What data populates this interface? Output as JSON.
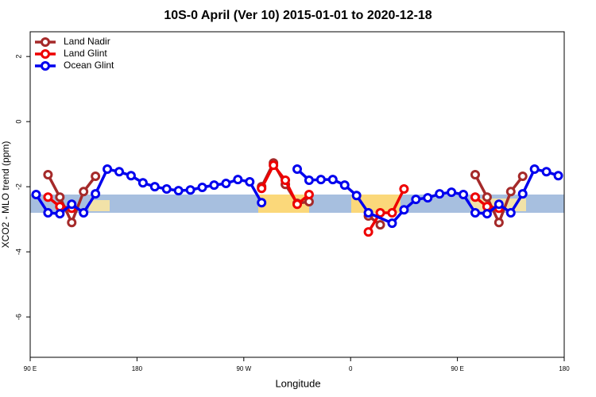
{
  "chart_data": {
    "type": "line",
    "title": "10S-0 April (Ver 10)   2015-01-01 to 2020-12-18",
    "xlabel": "Longitude",
    "ylabel": "XCO2 - MLO trend (ppm)",
    "xlim": [
      90,
      540
    ],
    "xticks": [
      {
        "value": 90,
        "label": "90 E"
      },
      180,
      {
        "value": 270,
        "label": "90 W"
      },
      {
        "value": 360,
        "label": "0"
      },
      {
        "value": 450,
        "label": "90 E"
      },
      {
        "value": 540,
        "label": "180"
      }
    ],
    "ylim": [
      -7.24,
      2.76
    ],
    "yticks": [
      2,
      0,
      -2,
      -4,
      -6
    ],
    "legend": "top-left",
    "series": [
      {
        "name": "Land Nadir",
        "color": "#a52a2a",
        "x": [
          105,
          115,
          125,
          135,
          145,
          205,
          285,
          295,
          305,
          315,
          325,
          350,
          375,
          385,
          420,
          465,
          475,
          485,
          495,
          505
        ],
        "values": [
          -1.63,
          -2.32,
          -3.1,
          -2.15,
          -1.68,
          null,
          -2.0,
          -1.27,
          -1.93,
          -2.51,
          -2.46,
          null,
          -2.9,
          -3.17,
          null,
          -1.63,
          -2.32,
          -3.1,
          -2.15,
          -1.68
        ]
      },
      {
        "name": "Land Glint",
        "color": "#ee0000",
        "x": [
          105,
          115,
          125,
          205,
          285,
          295,
          305,
          315,
          325,
          350,
          375,
          385,
          395,
          405,
          435,
          465,
          475,
          485
        ],
        "values": [
          -2.32,
          -2.61,
          -2.66,
          null,
          -2.05,
          -1.34,
          -1.8,
          -2.54,
          -2.24,
          null,
          -3.39,
          -2.8,
          -2.8,
          -2.07,
          null,
          -2.32,
          -2.61,
          -2.66
        ]
      },
      {
        "name": "Ocean Glint",
        "color": "#0000ee",
        "x": [
          95,
          105,
          115,
          125,
          135,
          145,
          155,
          165,
          175,
          185,
          195,
          205,
          215,
          225,
          235,
          245,
          255,
          265,
          275,
          285,
          300,
          315,
          325,
          335,
          345,
          355,
          365,
          375,
          395,
          405,
          415,
          425,
          435,
          445,
          455,
          465,
          475,
          485,
          495,
          505,
          515,
          525,
          535
        ],
        "values": [
          -2.24,
          -2.8,
          -2.83,
          -2.54,
          -2.8,
          -2.22,
          -1.46,
          -1.54,
          -1.66,
          -1.88,
          -2.0,
          -2.07,
          -2.12,
          -2.1,
          -2.02,
          -1.95,
          -1.9,
          -1.78,
          -1.85,
          -2.49,
          null,
          -1.46,
          -1.8,
          -1.78,
          -1.78,
          -1.95,
          -2.27,
          -2.8,
          -3.12,
          -2.71,
          -2.39,
          -2.34,
          -2.22,
          -2.17,
          -2.24,
          -2.8,
          -2.83,
          -2.54,
          -2.8,
          -2.22,
          -1.46,
          -1.54,
          -1.66
        ]
      }
    ]
  }
}
